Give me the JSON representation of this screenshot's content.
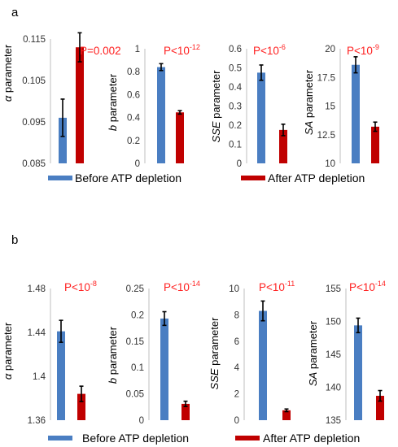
{
  "colors": {
    "before": "#4a7ec2",
    "after": "#c00000",
    "pvalue": "#ff2020"
  },
  "legend": {
    "before": "Before ATP depletion",
    "after": "After ATP depletion"
  },
  "chart_data": [
    {
      "type": "bar",
      "panel": "a",
      "ylabel": "α parameter",
      "ylabel_italic_part": "α",
      "ylabel_rest": " parameter",
      "ylim": [
        0.085,
        0.115
      ],
      "ticks": [
        "0.085",
        "0.095",
        "0.105",
        "0.115"
      ],
      "tick_values": [
        0.085,
        0.095,
        0.105,
        0.115
      ],
      "series": [
        {
          "name": "Before ATP depletion",
          "values": [
            0.096
          ],
          "error": [
            0.0045
          ]
        },
        {
          "name": "After ATP depletion",
          "values": [
            0.113
          ],
          "error": [
            0.0035
          ]
        }
      ],
      "pvalue": {
        "text": "P=0.002",
        "exp": ""
      }
    },
    {
      "type": "bar",
      "panel": "a",
      "ylabel": "b parameter",
      "ylabel_italic_part": "b",
      "ylabel_rest": " parameter",
      "ylim": [
        0,
        1
      ],
      "ticks": [
        "0",
        "0.2",
        "0.4",
        "0.6",
        "0.8",
        "1"
      ],
      "tick_values": [
        0,
        0.2,
        0.4,
        0.6,
        0.8,
        1
      ],
      "series": [
        {
          "name": "Before ATP depletion",
          "values": [
            0.84
          ],
          "error": [
            0.03
          ]
        },
        {
          "name": "After ATP depletion",
          "values": [
            0.445
          ],
          "error": [
            0.015
          ]
        }
      ],
      "pvalue": {
        "text": "P<10",
        "exp": "-12"
      }
    },
    {
      "type": "bar",
      "panel": "a",
      "ylabel": "SSE parameter",
      "ylabel_italic_part": "SSE",
      "ylabel_rest": " parameter",
      "ylim": [
        0,
        0.6
      ],
      "ticks": [
        "0",
        "0.1",
        "0.2",
        "0.3",
        "0.4",
        "0.5",
        "0.6"
      ],
      "tick_values": [
        0,
        0.1,
        0.2,
        0.3,
        0.4,
        0.5,
        0.6
      ],
      "series": [
        {
          "name": "Before ATP depletion",
          "values": [
            0.475
          ],
          "error": [
            0.04
          ]
        },
        {
          "name": "After ATP depletion",
          "values": [
            0.175
          ],
          "error": [
            0.03
          ]
        }
      ],
      "pvalue": {
        "text": "P<10",
        "exp": "-6"
      }
    },
    {
      "type": "bar",
      "panel": "a",
      "ylabel": "SA parameter",
      "ylabel_italic_part": "SA",
      "ylabel_rest": " parameter",
      "ylim": [
        10,
        20
      ],
      "ticks": [
        "10",
        "12.5",
        "15",
        "17.5",
        "20"
      ],
      "tick_values": [
        10,
        12.5,
        15,
        17.5,
        20
      ],
      "series": [
        {
          "name": "Before ATP depletion",
          "values": [
            18.6
          ],
          "error": [
            0.7
          ]
        },
        {
          "name": "After ATP depletion",
          "values": [
            13.2
          ],
          "error": [
            0.4
          ]
        }
      ],
      "pvalue": {
        "text": "P<10",
        "exp": "-9"
      }
    },
    {
      "type": "bar",
      "panel": "b",
      "ylabel": "α parameter",
      "ylabel_italic_part": "α",
      "ylabel_rest": " parameter",
      "ylim": [
        1.36,
        1.48
      ],
      "ticks": [
        "1.36",
        "1.4",
        "1.44",
        "1.48"
      ],
      "tick_values": [
        1.36,
        1.4,
        1.44,
        1.48
      ],
      "series": [
        {
          "name": "Before ATP depletion",
          "values": [
            1.441
          ],
          "error": [
            0.01
          ]
        },
        {
          "name": "After ATP depletion",
          "values": [
            1.384
          ],
          "error": [
            0.007
          ]
        }
      ],
      "pvalue": {
        "text": "P<10",
        "exp": "-8"
      }
    },
    {
      "type": "bar",
      "panel": "b",
      "ylabel": "b parameter",
      "ylabel_italic_part": "b",
      "ylabel_rest": " parameter",
      "ylim": [
        0,
        0.25
      ],
      "ticks": [
        "0",
        "0.05",
        "0.1",
        "0.15",
        "0.2",
        "0.25"
      ],
      "tick_values": [
        0,
        0.05,
        0.1,
        0.15,
        0.2,
        0.25
      ],
      "series": [
        {
          "name": "Before ATP depletion",
          "values": [
            0.193
          ],
          "error": [
            0.013
          ]
        },
        {
          "name": "After ATP depletion",
          "values": [
            0.031
          ],
          "error": [
            0.005
          ]
        }
      ],
      "pvalue": {
        "text": "P<10",
        "exp": "-14"
      }
    },
    {
      "type": "bar",
      "panel": "b",
      "ylabel": "SSE parameter",
      "ylabel_italic_part": "SSE",
      "ylabel_rest": " parameter",
      "ylim": [
        0,
        10
      ],
      "ticks": [
        "0",
        "2",
        "4",
        "6",
        "8",
        "10"
      ],
      "tick_values": [
        0,
        2,
        4,
        6,
        8,
        10
      ],
      "series": [
        {
          "name": "Before ATP depletion",
          "values": [
            8.3
          ],
          "error": [
            0.75
          ]
        },
        {
          "name": "After ATP depletion",
          "values": [
            0.75
          ],
          "error": [
            0.1
          ]
        }
      ],
      "pvalue": {
        "text": "P<10",
        "exp": "-11"
      }
    },
    {
      "type": "bar",
      "panel": "b",
      "ylabel": "SA parameter",
      "ylabel_italic_part": "SA",
      "ylabel_rest": " parameter",
      "ylim": [
        135,
        155
      ],
      "ticks": [
        "135",
        "140",
        "145",
        "150",
        "155"
      ],
      "tick_values": [
        135,
        140,
        145,
        150,
        155
      ],
      "series": [
        {
          "name": "Before ATP depletion",
          "values": [
            149.4
          ],
          "error": [
            1.1
          ]
        },
        {
          "name": "After ATP depletion",
          "values": [
            138.7
          ],
          "error": [
            0.8
          ]
        }
      ],
      "pvalue": {
        "text": "P<10",
        "exp": "-14"
      }
    }
  ],
  "panel_labels": [
    "a",
    "b"
  ]
}
